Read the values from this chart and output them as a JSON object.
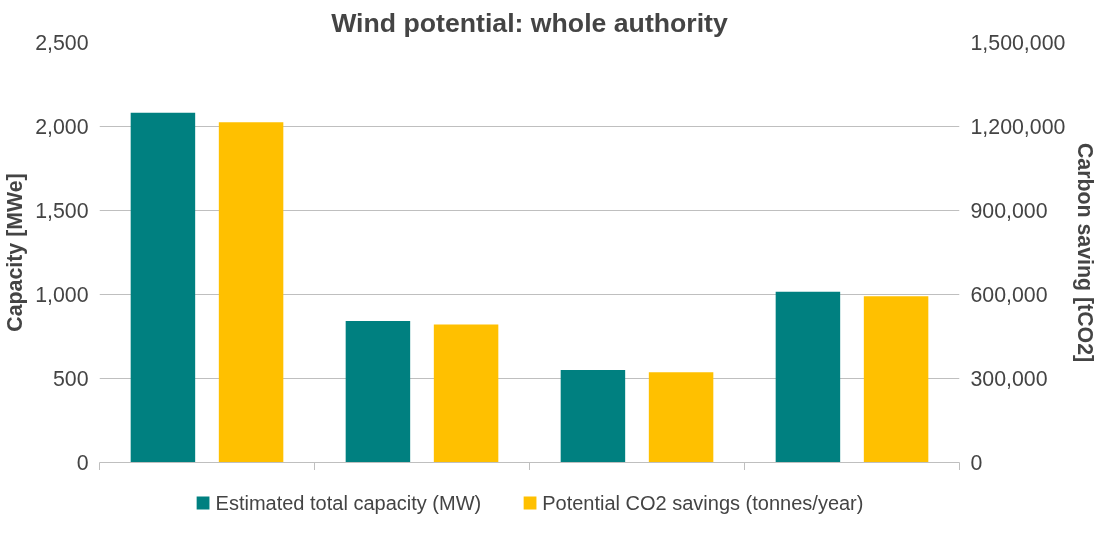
{
  "chart_data": {
    "type": "bar",
    "title": "Wind potential: whole authority",
    "ylabel": "Capacity [MWe]",
    "y2label": "Carbon saving [tCO2]",
    "categories": [
      null,
      null,
      null,
      null
    ],
    "series": [
      {
        "name": "Estimated total capacity (MW)",
        "color": "#008080",
        "values": [
          2082,
          843,
          551,
          1016
        ]
      },
      {
        "name": "Potential CO2 savings (tonnes/year)",
        "color": "#ffc000",
        "values": [
          1215000,
          493000,
          322000,
          594000
        ],
        "axis": "y2"
      }
    ],
    "ylim": [
      0,
      2500
    ],
    "yticks": [
      {
        "value": 0,
        "label": "0"
      },
      {
        "value": 500,
        "label": "500"
      },
      {
        "value": 1000,
        "label": "1,000"
      },
      {
        "value": 1500,
        "label": "1,500"
      },
      {
        "value": 2000,
        "label": "2,000"
      },
      {
        "value": 2500,
        "label": "2,500"
      }
    ],
    "y2lim": [
      0,
      1500000
    ],
    "y2ticks": [
      {
        "value": 0,
        "label": "0"
      },
      {
        "value": 300000,
        "label": "300,000"
      },
      {
        "value": 600000,
        "label": "600,000"
      },
      {
        "value": 900000,
        "label": "900,000"
      },
      {
        "value": 1200000,
        "label": "1,200,000"
      },
      {
        "value": 1500000,
        "label": "1,500,000"
      }
    ],
    "grid": "y",
    "legend": "bottom"
  }
}
